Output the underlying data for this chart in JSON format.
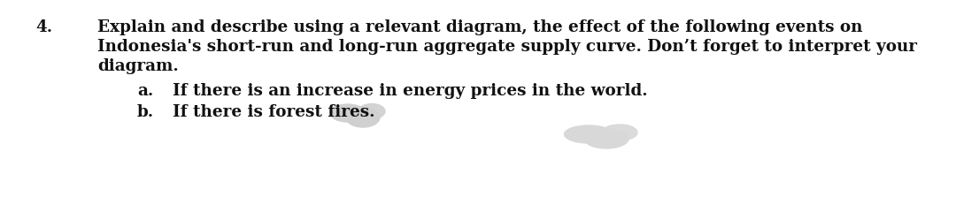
{
  "background_color": "#ffffff",
  "number": "4.",
  "line1": "Explain and describe using a relevant diagram, the effect of the following events on",
  "line2": "Indonesia's short-run and long-run aggregate supply curve. Don’t forget to interpret your",
  "line3": "diagram.",
  "item_a_label": "a.",
  "item_a_text": "If there is an increase in energy prices in the world.",
  "item_b_label": "b.",
  "item_b_text": "If there is forest fires.",
  "font_family": "DejaVu Serif",
  "font_size_main": 13.2,
  "font_size_items": 13.2,
  "text_color": "#111111",
  "blob_color_a": "#d8d8d8",
  "blob_color_b": "#d0d0d0",
  "fig_width": 10.8,
  "fig_height": 2.4,
  "dpi": 100
}
